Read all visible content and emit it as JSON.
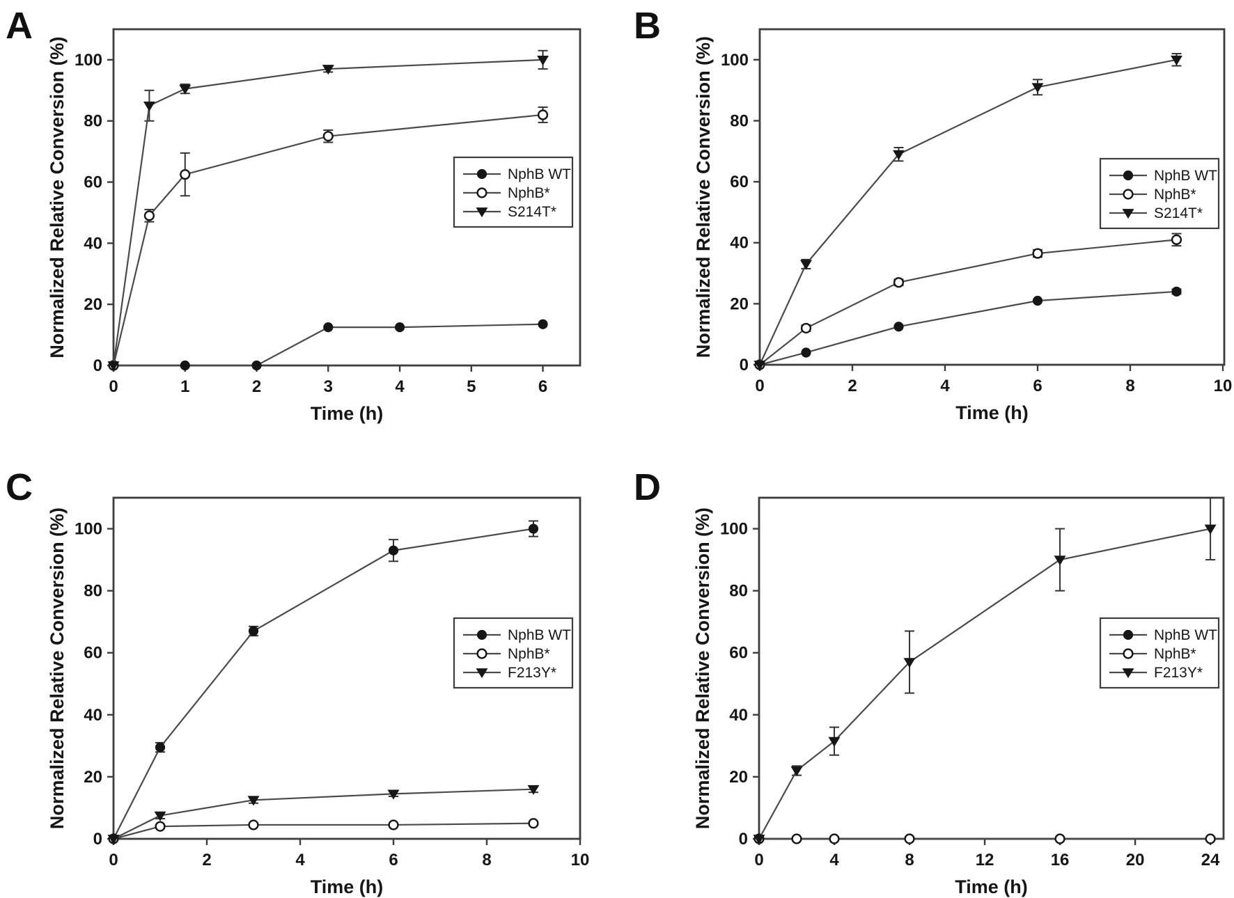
{
  "figure": {
    "background": "#ffffff",
    "ink_color": "#161616",
    "line_color": "#4a4a4a",
    "frame_color": "#3d3d3d"
  },
  "chart_data": [
    {
      "panel_label": "A",
      "type": "line",
      "xlabel": "Time (h)",
      "ylabel": "Normalized Relative Conversion (%)",
      "xlim": [
        0,
        6.52
      ],
      "ylim": [
        0,
        110
      ],
      "xticks": [
        0,
        1,
        2,
        3,
        4,
        5,
        6
      ],
      "yticks": [
        0,
        20,
        40,
        60,
        80,
        100
      ],
      "grid": false,
      "legend": {
        "position": "right-center",
        "entries": [
          "NphB WT",
          "NphB*",
          "S214T*"
        ]
      },
      "series": [
        {
          "name": "NphB WT",
          "marker": "filled-circle",
          "x": [
            0,
            1,
            2,
            3,
            4,
            6
          ],
          "y": [
            0,
            0,
            0,
            12.5,
            12.5,
            13.5
          ],
          "yerr": [
            0,
            0,
            0,
            0,
            0,
            0
          ]
        },
        {
          "name": "NphB*",
          "marker": "open-circle",
          "x": [
            0,
            0.5,
            1,
            3,
            6
          ],
          "y": [
            0,
            49,
            62.5,
            75,
            82
          ],
          "yerr": [
            0,
            2,
            7,
            2,
            2.5
          ]
        },
        {
          "name": "S214T*",
          "marker": "filled-triangle-down",
          "x": [
            0,
            0.5,
            1,
            3,
            6
          ],
          "y": [
            0,
            85,
            90.5,
            97,
            100
          ],
          "yerr": [
            0,
            5,
            1.5,
            1,
            3
          ]
        }
      ]
    },
    {
      "panel_label": "B",
      "type": "line",
      "xlabel": "Time (h)",
      "ylabel": "Normalized Relative Conversion (%)",
      "xlim": [
        0,
        10.03
      ],
      "ylim": [
        0,
        110
      ],
      "xticks": [
        0,
        2,
        4,
        6,
        8,
        10
      ],
      "yticks": [
        0,
        20,
        40,
        60,
        80,
        100
      ],
      "grid": false,
      "legend": {
        "position": "right-center",
        "entries": [
          "NphB WT",
          "NphB*",
          "S214T*"
        ]
      },
      "series": [
        {
          "name": "NphB WT",
          "marker": "filled-circle",
          "x": [
            0,
            1,
            3,
            6,
            9
          ],
          "y": [
            0,
            4,
            12.5,
            21,
            24
          ],
          "yerr": [
            0,
            0,
            0,
            0,
            0.8
          ]
        },
        {
          "name": "NphB*",
          "marker": "open-circle",
          "x": [
            0,
            1,
            3,
            6,
            9
          ],
          "y": [
            0,
            12,
            27,
            36.5,
            41
          ],
          "yerr": [
            0,
            1,
            1,
            1.2,
            2
          ]
        },
        {
          "name": "S214T*",
          "marker": "filled-triangle-down",
          "x": [
            0,
            1,
            3,
            6,
            9
          ],
          "y": [
            0,
            33,
            69,
            91,
            100
          ],
          "yerr": [
            0,
            1.5,
            2.2,
            2.5,
            2
          ]
        }
      ]
    },
    {
      "panel_label": "C",
      "type": "line",
      "xlabel": "Time (h)",
      "ylabel": "Normalized Relative Conversion (%)",
      "xlim": [
        0,
        10.0
      ],
      "ylim": [
        0,
        110
      ],
      "xticks": [
        0,
        2,
        4,
        6,
        8,
        10
      ],
      "yticks": [
        0,
        20,
        40,
        60,
        80,
        100
      ],
      "grid": false,
      "legend": {
        "position": "right-center",
        "entries": [
          "NphB WT",
          "NphB*",
          "F213Y*"
        ]
      },
      "series": [
        {
          "name": "NphB WT",
          "marker": "filled-circle",
          "x": [
            0,
            1,
            3,
            6,
            9
          ],
          "y": [
            0,
            29.5,
            67,
            93,
            100
          ],
          "yerr": [
            0,
            1.5,
            1.5,
            3.5,
            2.5
          ]
        },
        {
          "name": "NphB*",
          "marker": "open-circle",
          "x": [
            0,
            1,
            3,
            6,
            9
          ],
          "y": [
            0,
            4,
            4.5,
            4.5,
            5
          ],
          "yerr": [
            0,
            0,
            0,
            0,
            0
          ]
        },
        {
          "name": "F213Y*",
          "marker": "filled-triangle-down",
          "x": [
            0,
            1,
            3,
            6,
            9
          ],
          "y": [
            0,
            7.5,
            12.5,
            14.5,
            16
          ],
          "yerr": [
            0,
            1,
            1,
            0.8,
            1
          ]
        }
      ]
    },
    {
      "panel_label": "D",
      "type": "line",
      "xlabel": "Time (h)",
      "ylabel": "Normalized Relative Conversion (%)",
      "xlim": [
        0,
        24.7
      ],
      "ylim": [
        0,
        110
      ],
      "xticks": [
        0,
        4,
        8,
        12,
        16,
        20,
        24
      ],
      "yticks": [
        0,
        20,
        40,
        60,
        80,
        100
      ],
      "grid": false,
      "legend": {
        "position": "right-center",
        "entries": [
          "NphB WT",
          "NphB*",
          "F213Y*"
        ]
      },
      "series": [
        {
          "name": "NphB WT",
          "marker": "filled-circle",
          "x": [
            0,
            2,
            4,
            8,
            16,
            24
          ],
          "y": [
            0,
            0,
            0,
            0,
            0,
            0
          ],
          "yerr": [
            0,
            0,
            0,
            0,
            0,
            0
          ]
        },
        {
          "name": "NphB*",
          "marker": "open-circle",
          "x": [
            0,
            2,
            4,
            8,
            16,
            24
          ],
          "y": [
            0,
            0,
            0,
            0,
            0,
            0
          ],
          "yerr": [
            0,
            0,
            0,
            0,
            0,
            0
          ]
        },
        {
          "name": "F213Y*",
          "marker": "filled-triangle-down",
          "x": [
            0,
            2,
            4,
            8,
            16,
            24
          ],
          "y": [
            0,
            22,
            31.5,
            57,
            90,
            100
          ],
          "yerr": [
            0,
            1.5,
            4.5,
            10,
            10,
            10
          ]
        }
      ]
    }
  ]
}
